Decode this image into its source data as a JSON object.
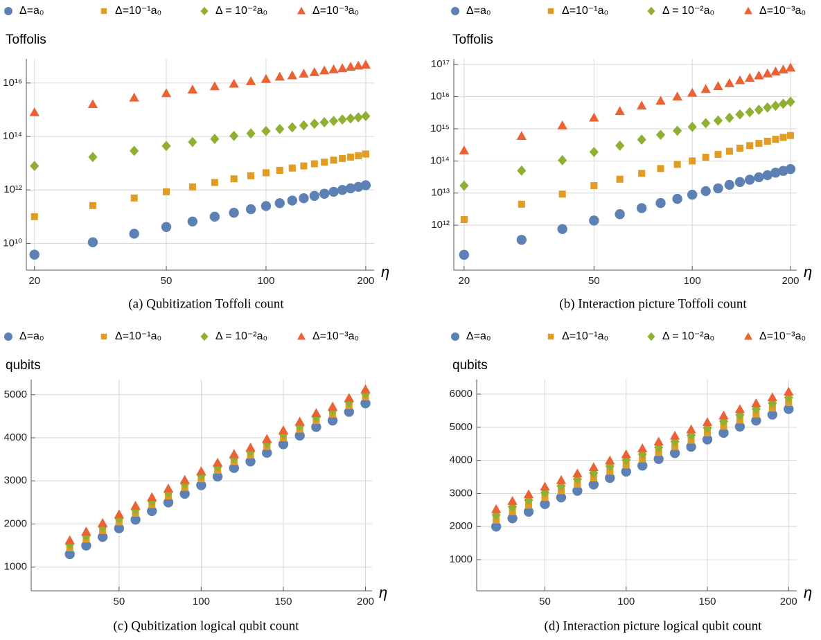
{
  "chart_data": [
    {
      "type": "scatter",
      "caption": "(a) Qubitization Toffoli count",
      "y_label": "Toffolis",
      "x_label": "η",
      "xscale": "log",
      "yscale": "log",
      "grid": true,
      "x": [
        20,
        30,
        40,
        50,
        60,
        70,
        80,
        90,
        100,
        110,
        120,
        130,
        140,
        150,
        160,
        170,
        180,
        190,
        200
      ],
      "xlim": [
        18.9,
        212
      ],
      "xticks": [
        20,
        50,
        100,
        200
      ],
      "ylim": [
        1000000000.0,
        8e+16
      ],
      "yticks": [
        {
          "value": 10000000000.0,
          "label": "10¹⁰"
        },
        {
          "value": 1000000000000.0,
          "label": "10¹²"
        },
        {
          "value": 100000000000000.0,
          "label": "10¹⁴"
        },
        {
          "value": 1e+16,
          "label": "10¹⁶"
        }
      ],
      "series": [
        {
          "name": "Δ=a₀",
          "color": "#5e81b5",
          "marker": "circle",
          "values": [
            3800000000.0,
            11000000000.0,
            23000000000.0,
            41000000000.0,
            66000000000.0,
            100000000000.0,
            140000000000.0,
            190000000000.0,
            250000000000.0,
            320000000000.0,
            400000000000.0,
            490000000000.0,
            600000000000.0,
            720000000000.0,
            850000000000.0,
            1000000000000.0,
            1150000000000.0,
            1300000000000.0,
            1500000000000.0
          ]
        },
        {
          "name": "Δ=10⁻¹a₀",
          "color": "#e19c24",
          "marker": "square",
          "values": [
            100000000000.0,
            260000000000.0,
            500000000000.0,
            850000000000.0,
            1300000000000.0,
            1900000000000.0,
            2600000000000.0,
            3400000000000.0,
            4400000000000.0,
            5400000000000.0,
            6600000000000.0,
            7900000000000.0,
            9500000000000.0,
            11000000000000.0,
            13000000000000.0,
            15000000000000.0,
            17000000000000.0,
            19000000000000.0,
            22000000000000.0
          ]
        },
        {
          "name": "Δ = 10⁻²a₀",
          "color": "#8fb032",
          "marker": "diamond",
          "values": [
            7900000000000.0,
            17000000000000.0,
            29000000000000.0,
            44000000000000.0,
            62000000000000.0,
            81000000000000.0,
            105000000000000.0,
            130000000000000.0,
            160000000000000.0,
            190000000000000.0,
            220000000000000.0,
            260000000000000.0,
            300000000000000.0,
            340000000000000.0,
            380000000000000.0,
            430000000000000.0,
            470000000000000.0,
            520000000000000.0,
            580000000000000.0
          ]
        },
        {
          "name": "Δ=10⁻³a₀",
          "color": "#eb6235",
          "marker": "triangle",
          "values": [
            790000000000000.0,
            1600000000000000.0,
            2800000000000000.0,
            4100000000000000.0,
            5600000000000000.0,
            7400000000000000.0,
            9300000000000000.0,
            1.15e+16,
            1.4e+16,
            1.7e+16,
            1.9e+16,
            2.2e+16,
            2.5e+16,
            2.9e+16,
            3.2e+16,
            3.5e+16,
            4e+16,
            4.4e+16,
            4.8e+16
          ]
        }
      ]
    },
    {
      "type": "scatter",
      "caption": "(b) Interaction picture Toffoli count",
      "y_label": "Toffolis",
      "x_label": "η",
      "xscale": "log",
      "yscale": "log",
      "grid": true,
      "x": [
        20,
        30,
        40,
        50,
        60,
        70,
        80,
        90,
        100,
        110,
        120,
        130,
        140,
        150,
        160,
        170,
        180,
        190,
        200
      ],
      "xlim": [
        18.6,
        209
      ],
      "xticks": [
        20,
        50,
        100,
        200
      ],
      "ylim": [
        40000000000.0,
        1.5e+17
      ],
      "yticks": [
        {
          "value": 1000000000000.0,
          "label": "10¹²"
        },
        {
          "value": 10000000000000.0,
          "label": "10¹³"
        },
        {
          "value": 100000000000000.0,
          "label": "10¹⁴"
        },
        {
          "value": 1000000000000000.0,
          "label": "10¹⁵"
        },
        {
          "value": 1e+16,
          "label": "10¹⁶"
        },
        {
          "value": 1e+17,
          "label": "10¹⁷"
        }
      ],
      "series": [
        {
          "name": "Δ=a₀",
          "color": "#5e81b5",
          "marker": "circle",
          "values": [
            120000000000.0,
            350000000000.0,
            760000000000.0,
            1400000000000.0,
            2200000000000.0,
            3400000000000.0,
            4900000000000.0,
            6600000000000.0,
            8900000000000.0,
            11500000000000.0,
            14000000000000.0,
            18000000000000.0,
            22000000000000.0,
            26000000000000.0,
            31000000000000.0,
            36000000000000.0,
            43000000000000.0,
            49000000000000.0,
            56000000000000.0
          ]
        },
        {
          "name": "Δ=10⁻¹a₀",
          "color": "#e19c24",
          "marker": "square",
          "values": [
            1500000000000.0,
            4500000000000.0,
            9300000000000.0,
            17000000000000.0,
            27000000000000.0,
            41000000000000.0,
            58000000000000.0,
            78000000000000.0,
            100000000000000.0,
            130000000000000.0,
            160000000000000.0,
            200000000000000.0,
            250000000000000.0,
            300000000000000.0,
            350000000000000.0,
            410000000000000.0,
            470000000000000.0,
            540000000000000.0,
            620000000000000.0
          ]
        },
        {
          "name": "Δ = 10⁻²a₀",
          "color": "#8fb032",
          "marker": "diamond",
          "values": [
            17000000000000.0,
            50000000000000.0,
            105000000000000.0,
            190000000000000.0,
            300000000000000.0,
            460000000000000.0,
            650000000000000.0,
            870000000000000.0,
            1150000000000000.0,
            1500000000000000.0,
            1800000000000000.0,
            2200000000000000.0,
            2800000000000000.0,
            3300000000000000.0,
            3900000000000000.0,
            4600000000000000.0,
            5200000000000000.0,
            6000000000000000.0,
            6900000000000000.0
          ]
        },
        {
          "name": "Δ=10⁻³a₀",
          "color": "#eb6235",
          "marker": "triangle",
          "values": [
            210000000000000.0,
            590000000000000.0,
            1260000000000000.0,
            2200000000000000.0,
            3500000000000000.0,
            5200000000000000.0,
            7400000000000000.0,
            1e+16,
            1.3e+16,
            1.7e+16,
            2.1e+16,
            2.6e+16,
            3.2e+16,
            3.8e+16,
            4.5e+16,
            5.2e+16,
            6e+16,
            6.9e+16,
            7.9e+16
          ]
        }
      ]
    },
    {
      "type": "scatter",
      "caption": "(c) Qubitization logical qubit count",
      "y_label": "qubits",
      "x_label": "η",
      "xscale": "linear",
      "yscale": "linear",
      "grid": true,
      "x": [
        20,
        30,
        40,
        50,
        60,
        70,
        80,
        90,
        100,
        110,
        120,
        130,
        140,
        150,
        160,
        170,
        180,
        190,
        200
      ],
      "xlim": [
        -3.5,
        204
      ],
      "xticks": [
        50,
        100,
        150,
        200
      ],
      "ylim": [
        450,
        5350
      ],
      "yticks": [
        1000,
        2000,
        3000,
        4000,
        5000
      ],
      "series": [
        {
          "name": "Δ=a₀",
          "color": "#5e81b5",
          "marker": "circle",
          "values": [
            1300,
            1500,
            1700,
            1900,
            2100,
            2300,
            2500,
            2700,
            2900,
            3100,
            3300,
            3450,
            3650,
            3850,
            4050,
            4250,
            4400,
            4600,
            4800
          ]
        },
        {
          "name": "Δ=10⁻¹a₀",
          "color": "#e19c24",
          "marker": "square",
          "values": [
            1450,
            1650,
            1850,
            2050,
            2250,
            2450,
            2650,
            2850,
            3050,
            3250,
            3450,
            3600,
            3800,
            4000,
            4200,
            4400,
            4550,
            4750,
            4950
          ]
        },
        {
          "name": "Δ = 10⁻²a₀",
          "color": "#8fb032",
          "marker": "diamond",
          "values": [
            1530,
            1730,
            1930,
            2130,
            2330,
            2530,
            2730,
            2930,
            3130,
            3330,
            3530,
            3680,
            3880,
            4080,
            4280,
            4480,
            4630,
            4830,
            5030
          ]
        },
        {
          "name": "Δ=10⁻³a₀",
          "color": "#eb6235",
          "marker": "triangle",
          "values": [
            1620,
            1820,
            2020,
            2220,
            2420,
            2620,
            2820,
            3020,
            3220,
            3420,
            3620,
            3770,
            3970,
            4170,
            4370,
            4570,
            4720,
            4920,
            5120
          ]
        }
      ]
    },
    {
      "type": "scatter",
      "caption": "(d) Interaction picture logical qubit count",
      "y_label": "qubits",
      "x_label": "η",
      "xscale": "linear",
      "yscale": "linear",
      "grid": true,
      "x": [
        20,
        30,
        40,
        50,
        60,
        70,
        80,
        90,
        100,
        110,
        120,
        130,
        140,
        150,
        160,
        170,
        180,
        190,
        200
      ],
      "xlim": [
        8,
        205
      ],
      "xticks": [
        50,
        100,
        150,
        200
      ],
      "ylim": [
        60,
        6440
      ],
      "yticks": [
        1000,
        2000,
        3000,
        4000,
        5000,
        6000
      ],
      "series": [
        {
          "name": "Δ=a₀",
          "color": "#5e81b5",
          "marker": "circle",
          "values": [
            2000,
            2250,
            2450,
            2680,
            2880,
            3080,
            3270,
            3470,
            3660,
            3840,
            4040,
            4220,
            4410,
            4630,
            4830,
            5020,
            5200,
            5380,
            5550
          ]
        },
        {
          "name": "Δ=10⁻¹a₀",
          "color": "#e19c24",
          "marker": "square",
          "values": [
            2200,
            2450,
            2650,
            2880,
            3080,
            3280,
            3470,
            3670,
            3860,
            4040,
            4240,
            4420,
            4610,
            4830,
            5030,
            5220,
            5400,
            5580,
            5750
          ]
        },
        {
          "name": "Δ = 10⁻²a₀",
          "color": "#8fb032",
          "marker": "diamond",
          "values": [
            2350,
            2600,
            2800,
            3030,
            3230,
            3430,
            3620,
            3820,
            4010,
            4190,
            4390,
            4570,
            4760,
            4980,
            5180,
            5370,
            5550,
            5730,
            5900
          ]
        },
        {
          "name": "Δ=10⁻³a₀",
          "color": "#eb6235",
          "marker": "triangle",
          "values": [
            2520,
            2770,
            2970,
            3200,
            3400,
            3600,
            3790,
            3990,
            4180,
            4360,
            4560,
            4740,
            4930,
            5150,
            5350,
            5540,
            5720,
            5900,
            6070
          ]
        }
      ]
    }
  ]
}
